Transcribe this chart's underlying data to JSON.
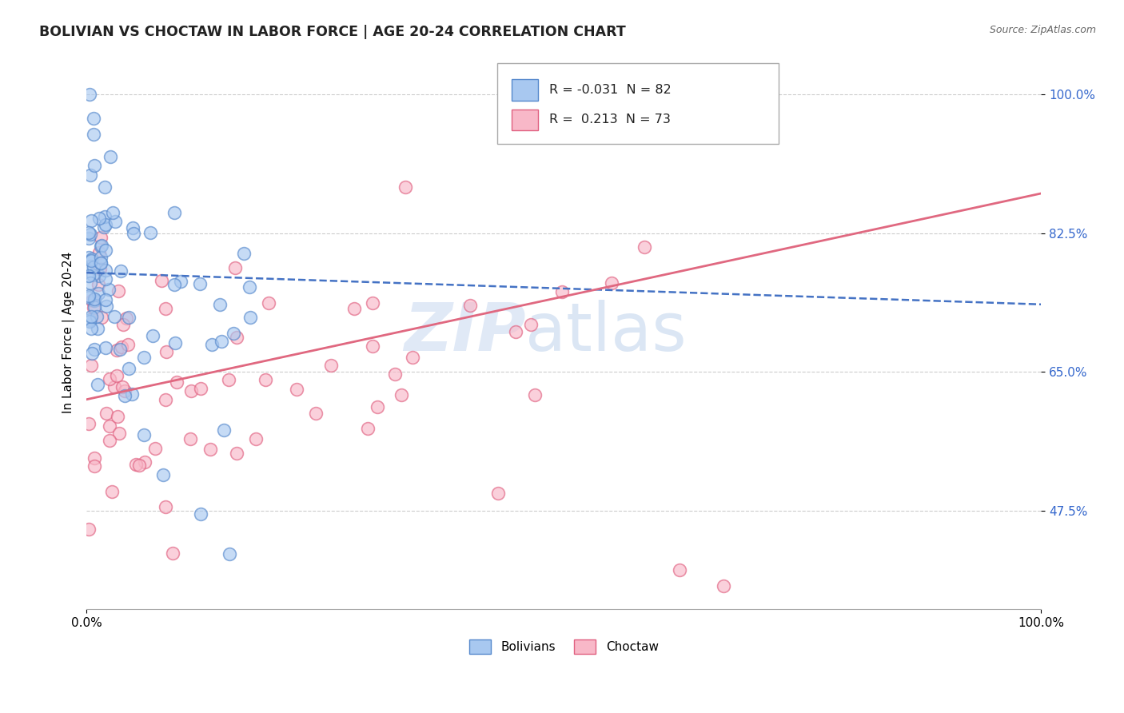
{
  "title": "BOLIVIAN VS CHOCTAW IN LABOR FORCE | AGE 20-24 CORRELATION CHART",
  "source_text": "Source: ZipAtlas.com",
  "ylabel": "In Labor Force | Age 20-24",
  "xlim": [
    0.0,
    1.0
  ],
  "ylim": [
    0.35,
    1.05
  ],
  "yticks": [
    0.475,
    0.65,
    0.825,
    1.0
  ],
  "ytick_labels": [
    "47.5%",
    "65.0%",
    "82.5%",
    "100.0%"
  ],
  "xticks": [
    0.0,
    1.0
  ],
  "xtick_labels": [
    "0.0%",
    "100.0%"
  ],
  "bolivian_fill": "#a8c8f0",
  "bolivian_edge": "#5588cc",
  "choctaw_fill": "#f8b8c8",
  "choctaw_edge": "#e06080",
  "bolivian_line_color": "#4472c4",
  "choctaw_line_color": "#e06880",
  "ytick_color": "#3366cc",
  "legend_R_bolivian": "-0.031",
  "legend_N_bolivian": "82",
  "legend_R_choctaw": "0.213",
  "legend_N_choctaw": "73",
  "legend_label_bolivian": "Bolivians",
  "legend_label_choctaw": "Choctaw",
  "watermark_zip": "ZIP",
  "watermark_atlas": "atlas",
  "boli_line_x0": 0.0,
  "boli_line_x1": 1.0,
  "boli_line_y0": 0.775,
  "boli_line_y1": 0.735,
  "choc_line_x0": 0.0,
  "choc_line_x1": 1.0,
  "choc_line_y0": 0.615,
  "choc_line_y1": 0.875
}
